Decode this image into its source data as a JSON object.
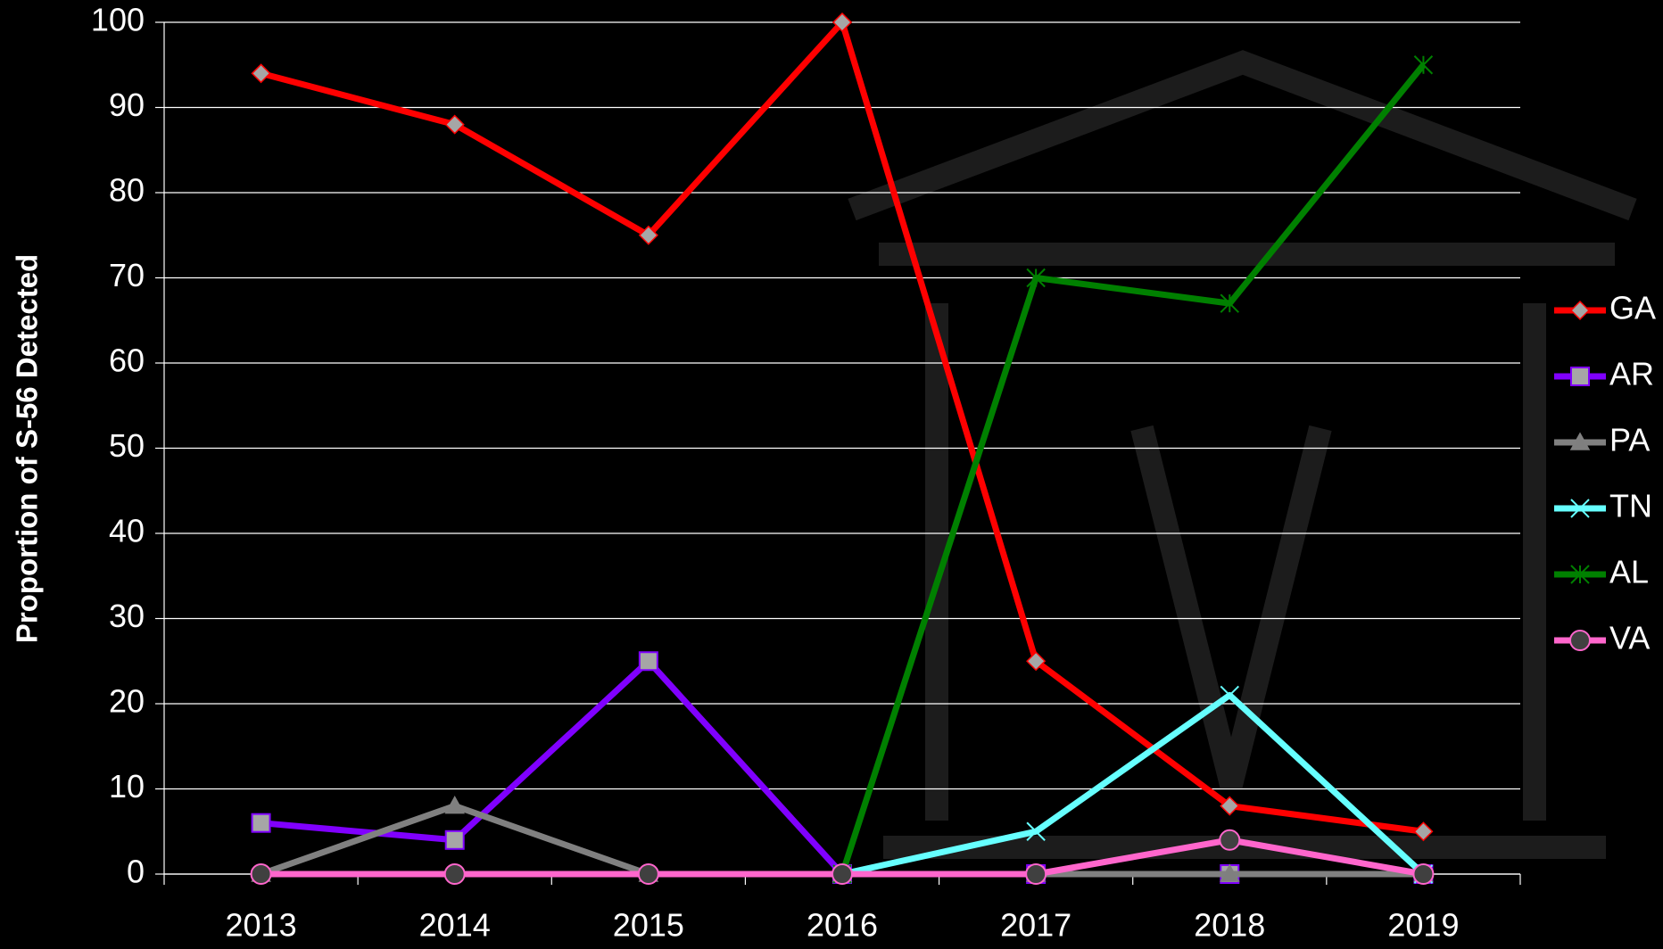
{
  "chart_data": {
    "type": "line",
    "ylabel": "Proportion of S-56 Detected",
    "categories": [
      "2013",
      "2014",
      "2015",
      "2016",
      "2017",
      "2018",
      "2019"
    ],
    "series": [
      {
        "name": "GA",
        "color": "#ff0000",
        "marker": "diamond",
        "values": [
          94,
          88,
          75,
          100,
          25,
          8,
          5
        ]
      },
      {
        "name": "AR",
        "color": "#8000ff",
        "marker": "square",
        "values": [
          6,
          4,
          25,
          0,
          0,
          0,
          0
        ]
      },
      {
        "name": "PA",
        "color": "#808080",
        "marker": "triangle",
        "values": [
          0,
          8,
          0,
          0,
          0,
          0,
          0
        ]
      },
      {
        "name": "TN",
        "color": "#66ffff",
        "marker": "x",
        "values": [
          null,
          null,
          null,
          0,
          5,
          21,
          0
        ]
      },
      {
        "name": "AL",
        "color": "#008000",
        "marker": "star",
        "values": [
          null,
          null,
          null,
          0,
          70,
          67,
          95
        ]
      },
      {
        "name": "VA",
        "color": "#ff66cc",
        "marker": "circle",
        "values": [
          0,
          0,
          0,
          0,
          0,
          4,
          0
        ]
      }
    ],
    "ylim": [
      0,
      100
    ],
    "yticks": [
      0,
      10,
      20,
      30,
      40,
      50,
      60,
      70,
      80,
      90,
      100
    ],
    "grid": true,
    "legend": "right"
  }
}
